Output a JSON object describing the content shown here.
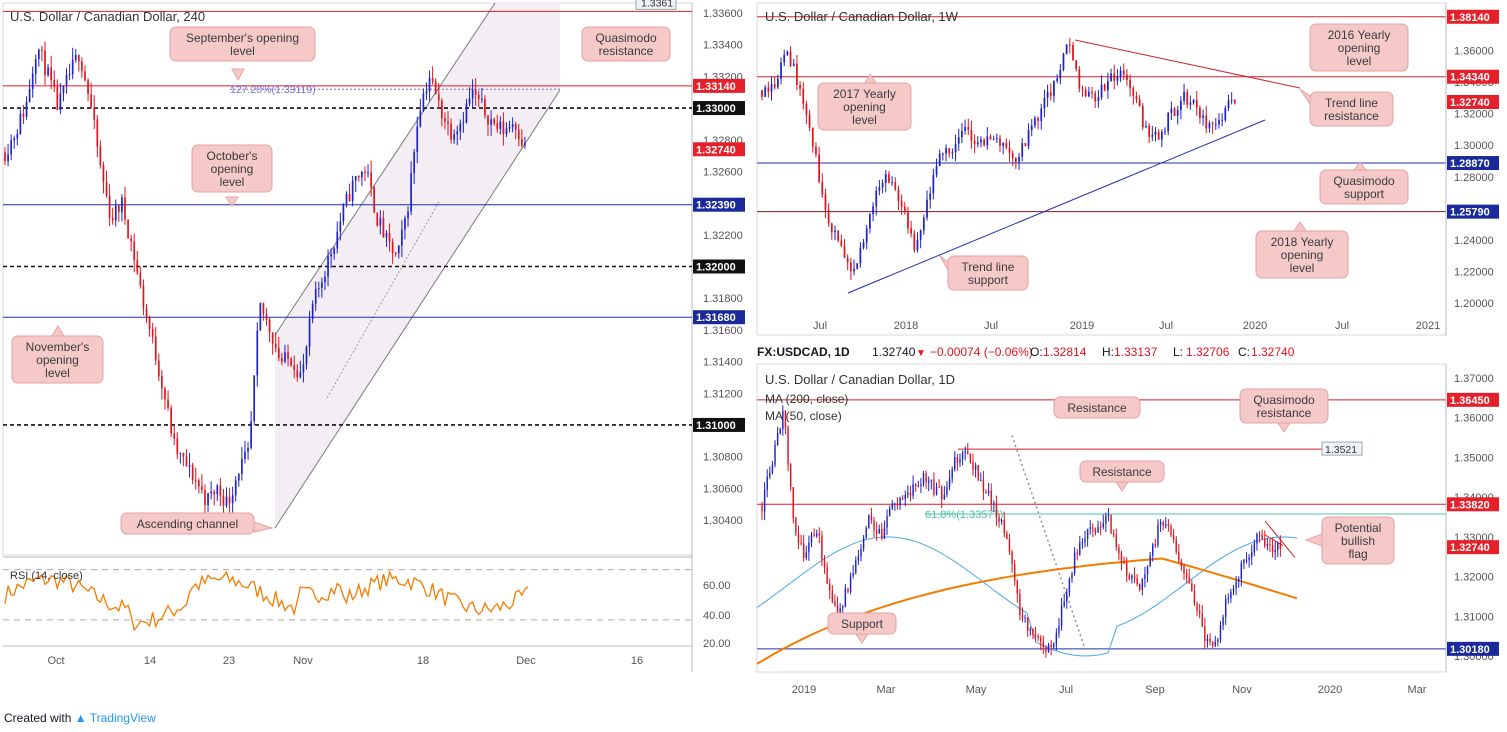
{
  "colors": {
    "up": "#1e22c8",
    "down": "#e0141e",
    "resistance": "#d3222a",
    "support": "#1f2ea8",
    "ma200": "#f57c00",
    "ma50": "#4aa8e0",
    "rsi": "#f57c00",
    "note_bg": "#f6c9c9",
    "note_border": "#e7a1a1",
    "price_tag": "#e5202a",
    "support_tag": "#1a2a9a"
  },
  "footer": {
    "created_with": "Created with",
    "brand": "TradingView"
  },
  "panel_4h": {
    "title": "U.S. Dollar / Canadian Dollar, 240",
    "price_ticks": [
      "1.33600",
      "1.33400",
      "1.33200",
      "1.33000",
      "1.32800",
      "1.32600",
      "1.32400",
      "1.32200",
      "1.32000",
      "1.31800",
      "1.31600",
      "1.31400",
      "1.31200",
      "1.31000",
      "1.30800",
      "1.30600",
      "1.30400"
    ],
    "x_ticks": [
      "Oct",
      "14",
      "23",
      "Nov",
      "18",
      "Dec",
      "16"
    ],
    "tags": [
      {
        "v": "1.3361"
      },
      {
        "v": "1.33140"
      },
      {
        "v": "1.33000"
      },
      {
        "v": "1.32740"
      },
      {
        "v": "1.32390"
      },
      {
        "v": "1.32000"
      },
      {
        "v": "1.31680"
      },
      {
        "v": "1.31000"
      }
    ],
    "fib_label": "127.20%(1.33119)",
    "notes": [
      "September's opening level",
      "Quasimodo resistance",
      "October's opening level",
      "November's opening level",
      "Ascending channel"
    ],
    "rsi": {
      "label": "RSI (14, close)",
      "ticks": [
        "60.00",
        "40.00",
        "20.00"
      ]
    }
  },
  "panel_1w": {
    "title": "U.S. Dollar / Canadian Dollar, 1W",
    "price_ticks": [
      "1.36000",
      "1.34000",
      "1.32000",
      "1.30000",
      "1.28000",
      "1.26000",
      "1.24000",
      "1.22000",
      "1.20000"
    ],
    "x_ticks": [
      "Jul",
      "2018",
      "Jul",
      "2019",
      "Jul",
      "2020",
      "Jul",
      "2021"
    ],
    "tags": [
      {
        "v": "1.38140"
      },
      {
        "v": "1.34340"
      },
      {
        "v": "1.32740"
      },
      {
        "v": "1.28870"
      },
      {
        "v": "1.25790"
      }
    ],
    "notes": [
      "2016 Yearly opening level",
      "2017 Yearly opening level",
      "Trend line resistance",
      "Quasimodo support",
      "2018 Yearly opening level",
      "Trend line support"
    ]
  },
  "panel_1d": {
    "header": {
      "symbol": "FX:USDCAD, 1D",
      "last": "1.32740",
      "change": "−0.00074 (−0.06%)",
      "o": "1.32814",
      "h": "1.33137",
      "l": "1.32706",
      "c": "1.32740",
      "o_label": "O:",
      "h_label": "H:",
      "l_label": "L:",
      "c_label": "C:"
    },
    "title": "U.S. Dollar / Canadian Dollar, 1D",
    "ma_labels": [
      "MA (200, close)",
      "MA (50, close)"
    ],
    "price_ticks": [
      "1.37000",
      "1.36000",
      "1.35000",
      "1.34000",
      "1.33000",
      "1.32000",
      "1.31000",
      "1.30000"
    ],
    "x_ticks": [
      "2019",
      "Mar",
      "May",
      "Jul",
      "Sep",
      "Nov",
      "2020",
      "Mar"
    ],
    "tags": [
      {
        "v": "1.36450"
      },
      {
        "v": "1.33820"
      },
      {
        "v": "1.32740"
      },
      {
        "v": "1.30180"
      }
    ],
    "small_tag": "1.3521",
    "fib_label": "61.8%(1.33577)",
    "notes": [
      "Resistance",
      "Quasimodo resistance",
      "Resistance",
      "Potential bullish flag",
      "Support"
    ]
  }
}
